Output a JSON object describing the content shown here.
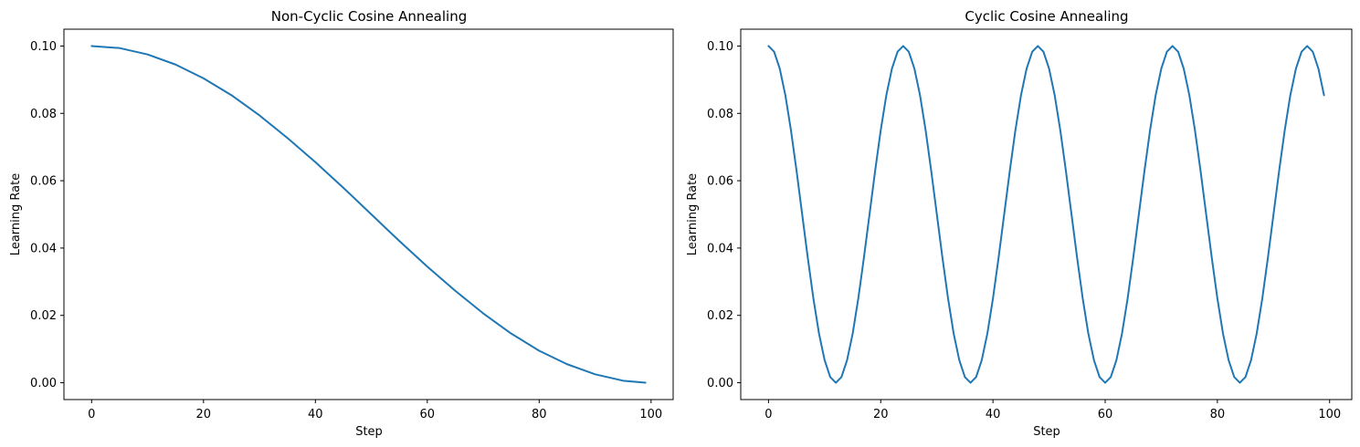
{
  "chart_data": [
    {
      "type": "line",
      "title": "Non-Cyclic Cosine Annealing",
      "xlabel": "Step",
      "ylabel": "Learning Rate",
      "xlim": [
        -4.95,
        103.95
      ],
      "ylim": [
        -0.005,
        0.105
      ],
      "xticks": [
        0,
        20,
        40,
        60,
        80,
        100
      ],
      "yticks": [
        0.0,
        0.02,
        0.04,
        0.06,
        0.08,
        0.1
      ],
      "xtick_labels": [
        "0",
        "20",
        "40",
        "60",
        "80",
        "100"
      ],
      "ytick_labels": [
        "0.00",
        "0.02",
        "0.04",
        "0.06",
        "0.08",
        "0.10"
      ],
      "grid": false,
      "series": [
        {
          "color": "#1f77b4",
          "x": [
            0,
            5,
            10,
            15,
            20,
            25,
            30,
            35,
            40,
            45,
            50,
            55,
            60,
            65,
            70,
            75,
            80,
            85,
            90,
            95,
            99
          ],
          "y": [
            0.1,
            0.0994,
            0.0975,
            0.0945,
            0.0904,
            0.0854,
            0.0794,
            0.0727,
            0.0655,
            0.0579,
            0.05,
            0.0421,
            0.0345,
            0.0273,
            0.0206,
            0.0146,
            0.0095,
            0.0055,
            0.0025,
            0.0006,
            0.0
          ]
        }
      ]
    },
    {
      "type": "line",
      "title": "Cyclic Cosine Annealing",
      "xlabel": "Step",
      "ylabel": "Learning Rate",
      "xlim": [
        -4.95,
        103.95
      ],
      "ylim": [
        -0.005,
        0.105
      ],
      "xticks": [
        0,
        20,
        40,
        60,
        80,
        100
      ],
      "yticks": [
        0.0,
        0.02,
        0.04,
        0.06,
        0.08,
        0.1
      ],
      "xtick_labels": [
        "0",
        "20",
        "40",
        "60",
        "80",
        "100"
      ],
      "ytick_labels": [
        "0.00",
        "0.02",
        "0.04",
        "0.06",
        "0.08",
        "0.10"
      ],
      "grid": false,
      "series": [
        {
          "color": "#1f77b4",
          "x": [
            0,
            1,
            2,
            3,
            4,
            5,
            6,
            7,
            8,
            9,
            10,
            11,
            12,
            13,
            14,
            15,
            16,
            17,
            18,
            19,
            20,
            21,
            22,
            23,
            24,
            25,
            26,
            27,
            28,
            29,
            30,
            31,
            32,
            33,
            34,
            35,
            36,
            37,
            38,
            39,
            40,
            41,
            42,
            43,
            44,
            45,
            46,
            47,
            48,
            49,
            50,
            51,
            52,
            53,
            54,
            55,
            56,
            57,
            58,
            59,
            60,
            61,
            62,
            63,
            64,
            65,
            66,
            67,
            68,
            69,
            70,
            71,
            72,
            73,
            74,
            75,
            76,
            77,
            78,
            79,
            80,
            81,
            82,
            83,
            84,
            85,
            86,
            87,
            88,
            89,
            90,
            91,
            92,
            93,
            94,
            95,
            96,
            97,
            98,
            99
          ],
          "y": [
            0.1,
            0.0983,
            0.0933,
            0.0854,
            0.075,
            0.0629,
            0.05,
            0.0371,
            0.025,
            0.0146,
            0.0067,
            0.0017,
            0.0,
            0.0017,
            0.0067,
            0.0146,
            0.025,
            0.0371,
            0.05,
            0.0629,
            0.075,
            0.0854,
            0.0933,
            0.0983,
            0.1,
            0.0983,
            0.0933,
            0.0854,
            0.075,
            0.0629,
            0.05,
            0.0371,
            0.025,
            0.0146,
            0.0067,
            0.0017,
            0.0,
            0.0017,
            0.0067,
            0.0146,
            0.025,
            0.0371,
            0.05,
            0.0629,
            0.075,
            0.0854,
            0.0933,
            0.0983,
            0.1,
            0.0983,
            0.0933,
            0.0854,
            0.075,
            0.0629,
            0.05,
            0.0371,
            0.025,
            0.0146,
            0.0067,
            0.0017,
            0.0,
            0.0017,
            0.0067,
            0.0146,
            0.025,
            0.0371,
            0.05,
            0.0629,
            0.075,
            0.0854,
            0.0933,
            0.0983,
            0.1,
            0.0983,
            0.0933,
            0.0854,
            0.075,
            0.0629,
            0.05,
            0.0371,
            0.025,
            0.0146,
            0.0067,
            0.0017,
            0.0,
            0.0017,
            0.0067,
            0.0146,
            0.025,
            0.0371,
            0.05,
            0.0629,
            0.075,
            0.0854,
            0.0933,
            0.0983,
            0.1,
            0.0983,
            0.0933,
            0.0854
          ]
        }
      ]
    }
  ]
}
